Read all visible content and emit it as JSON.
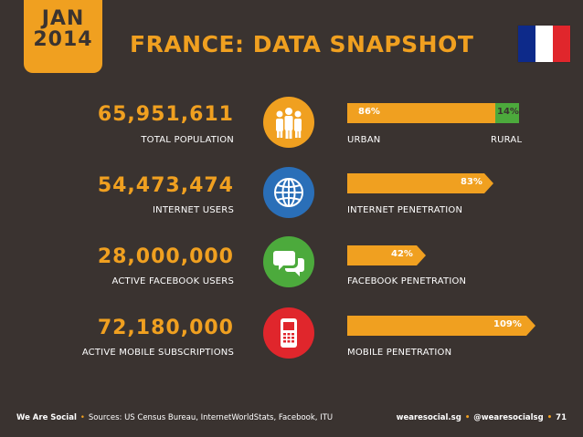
{
  "header": {
    "month": "JAN",
    "year": "2014",
    "title": "FRANCE: DATA SNAPSHOT",
    "flag_colors": [
      "#0d2a8a",
      "#ffffff",
      "#e0262c"
    ]
  },
  "stats": [
    {
      "value": "65,951,611",
      "label": "TOTAL POPULATION",
      "icon": "people-icon",
      "icon_color": "#f0a020"
    },
    {
      "value": "54,473,474",
      "label": "INTERNET USERS",
      "icon": "globe-icon",
      "icon_color": "#2a6fb8"
    },
    {
      "value": "28,000,000",
      "label": "ACTIVE FACEBOOK USERS",
      "icon": "chat-bubbles-icon",
      "icon_color": "#4caa3c"
    },
    {
      "value": "72,180,000",
      "label": "ACTIVE MOBILE SUBSCRIPTIONS",
      "icon": "mobile-phone-icon",
      "icon_color": "#e0262c"
    }
  ],
  "bars": {
    "urban": {
      "value_text": "86%",
      "value": 86,
      "label": "URBAN",
      "color": "#f0a020"
    },
    "rural": {
      "value_text": "14%",
      "value": 14,
      "label": "RURAL",
      "color": "#4caa3c"
    },
    "internet": {
      "value_text": "83%",
      "value": 83,
      "label": "INTERNET PENETRATION"
    },
    "facebook": {
      "value_text": "42%",
      "value": 42,
      "label": "FACEBOOK PENETRATION"
    },
    "mobile": {
      "value_text": "109%",
      "value": 109,
      "label": "MOBILE PENETRATION"
    }
  },
  "footer": {
    "brand": "We Are Social",
    "sources": "Sources: US Census Bureau, InternetWorldStats, Facebook, ITU",
    "site": "wearesocial.sg",
    "handle": "@wearesocialsg",
    "page": "71"
  }
}
